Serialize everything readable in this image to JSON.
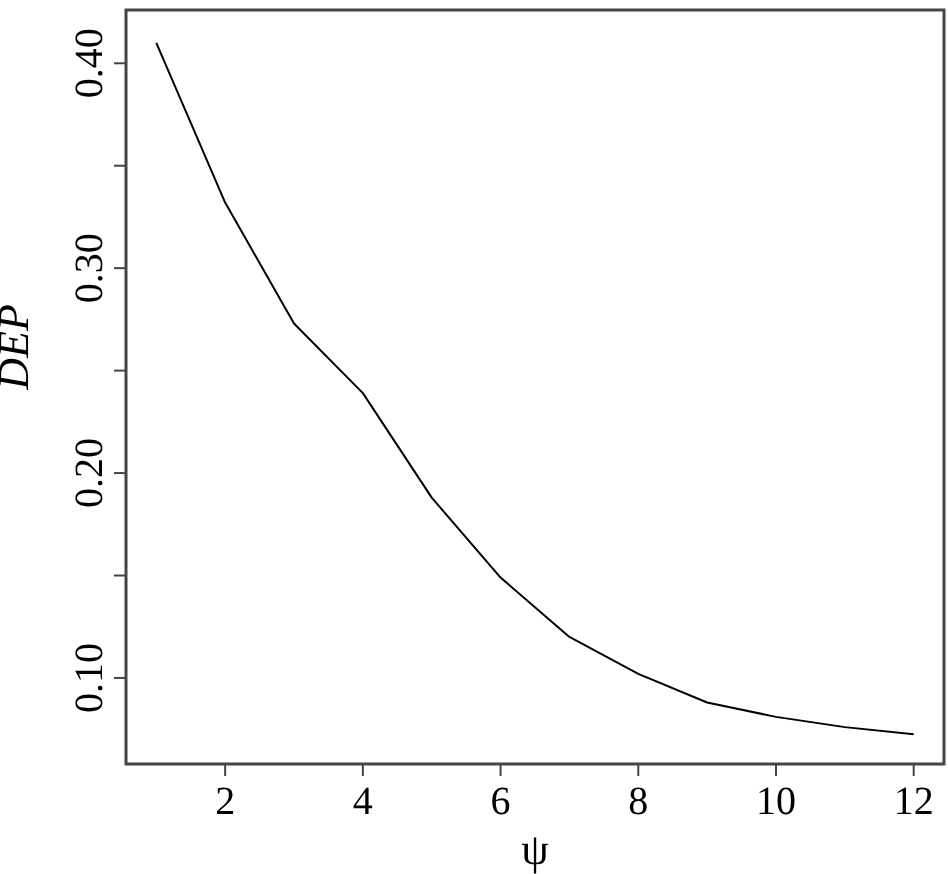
{
  "chart_data": {
    "type": "line",
    "xlabel": "ψ",
    "ylabel": "DEP",
    "x": [
      1,
      2,
      3,
      4,
      5,
      6,
      7,
      8,
      9,
      10,
      11,
      12
    ],
    "series": [
      {
        "color": "#000000",
        "values": [
          0.41,
          0.332,
          0.273,
          0.239,
          0.188,
          0.149,
          0.12,
          0.102,
          0.088,
          0.081,
          0.076,
          0.0725
        ]
      }
    ],
    "xlim": [
      0.56,
      12.44
    ],
    "ylim": [
      0.058,
      0.426
    ],
    "xticks": [
      2,
      4,
      6,
      8,
      10,
      12
    ],
    "yticks": [
      {
        "value": 0.1,
        "label": "0.10"
      },
      {
        "value": 0.15,
        "label": null
      },
      {
        "value": 0.2,
        "label": "0.20"
      },
      {
        "value": 0.25,
        "label": null
      },
      {
        "value": 0.3,
        "label": "0.30"
      },
      {
        "value": 0.35,
        "label": null
      },
      {
        "value": 0.4,
        "label": "0.40"
      }
    ],
    "grid": false,
    "marker": "none",
    "line_style": "solid"
  }
}
